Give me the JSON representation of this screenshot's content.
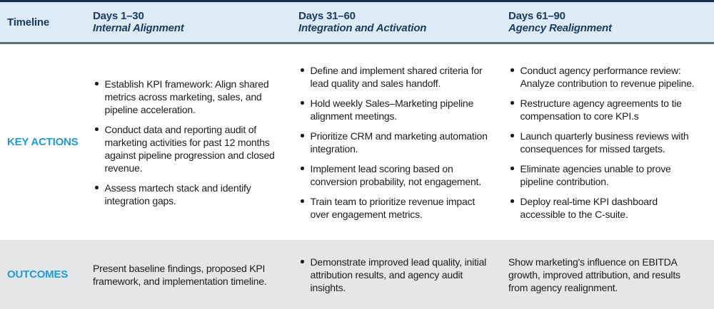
{
  "theme": {
    "header_bg": "#dcebf6",
    "outcomes_bg": "#e4e6e8",
    "navy": "#1b3a5f",
    "accent_blue": "#1e9cd7",
    "body_text": "#1c1c1c",
    "top_border": "#16314e",
    "header_rule": "#5d6f7e"
  },
  "rows": {
    "timeline_label": "Timeline",
    "key_actions_label": "KEY ACTIONS",
    "outcomes_label": "OUTCOMES"
  },
  "columns": [
    {
      "days": "Days 1–30",
      "phase": "Internal Alignment",
      "key_actions": [
        "Establish KPI framework: Align shared metrics across marketing, sales, and pipeline acceleration.",
        "Conduct data and reporting audit of marketing activities for past 12 months against pipeline progression and closed revenue.",
        "Assess martech stack and identify integration gaps."
      ],
      "outcomes": {
        "bulleted": false,
        "items": [
          "Present baseline findings, proposed KPI framework, and implementation timeline."
        ]
      }
    },
    {
      "days": "Days 31–60",
      "phase": "Integration and Activation",
      "key_actions": [
        "Define and implement shared criteria for lead quality and sales handoff.",
        "Hold weekly Sales–Marketing pipeline alignment meetings.",
        "Prioritize CRM and marketing automation integration.",
        "Implement lead scoring based on conversion probability, not engagement.",
        "Train team to prioritize revenue impact over engagement metrics."
      ],
      "outcomes": {
        "bulleted": true,
        "items": [
          "Demonstrate improved lead quality, initial attribution results, and agency audit insights."
        ]
      }
    },
    {
      "days": "Days 61–90",
      "phase": "Agency Realignment",
      "key_actions": [
        "Conduct agency performance review: Analyze contribution to revenue pipeline.",
        "Restructure agency agreements to tie compensation to core KPI.s",
        "Launch quarterly business reviews with consequences for missed targets.",
        "Eliminate agencies unable to prove pipeline contribution.",
        "Deploy real-time KPI dashboard accessible to the C-suite."
      ],
      "outcomes": {
        "bulleted": false,
        "items": [
          "Show marketing's influence on EBITDA growth, improved attribution, and results from agency realignment."
        ]
      }
    }
  ]
}
